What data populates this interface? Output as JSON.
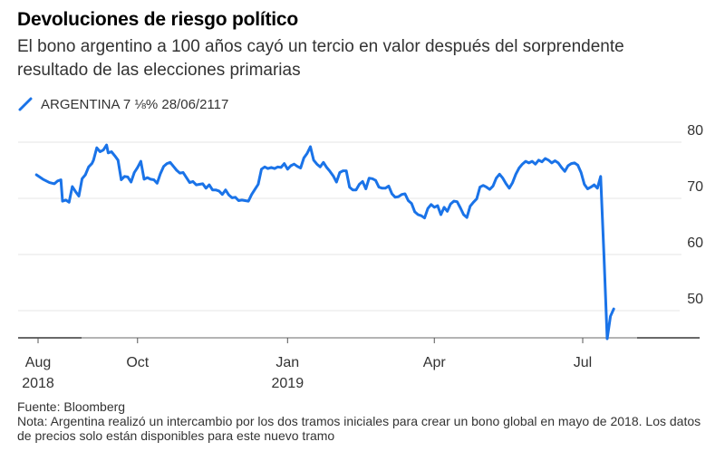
{
  "header": {
    "title": "Devoluciones de riesgo político",
    "subtitle": "El bono argentino a 100 años cayó un tercio en valor después del sorprendente resultado de las elecciones primarias"
  },
  "legend": {
    "label": "ARGENTINA 7 ⅛% 28/06/2117",
    "color": "#1a73e8"
  },
  "footer": {
    "source": "Fuente: Bloomberg",
    "note": "Nota: Argentina realizó un intercambio por los dos tramos iniciales para crear un bono global en mayo de 2018. Los datos de precios solo están disponibles para este nuevo tramo"
  },
  "chart_data": {
    "type": "line",
    "title": "Devoluciones de riesgo político",
    "xlabel": "",
    "ylabel": "",
    "ylim": [
      45,
      80
    ],
    "yticks": [
      50,
      60,
      70,
      80
    ],
    "grid": true,
    "legend_position": "top-left",
    "xticks": [
      {
        "label": "Aug",
        "sub": "2018",
        "day": 0
      },
      {
        "label": "Oct",
        "sub": "",
        "day": 61
      },
      {
        "label": "Jan",
        "sub": "2019",
        "day": 153
      },
      {
        "label": "Apr",
        "sub": "",
        "day": 243
      },
      {
        "label": "Jul",
        "sub": "",
        "day": 334
      }
    ],
    "series": [
      {
        "name": "ARGENTINA 7 ⅛% 28/06/2117",
        "x_day": [
          -1,
          3,
          7,
          10,
          12,
          14,
          15,
          17,
          19,
          21,
          23,
          25,
          27,
          29,
          31,
          33,
          34,
          36,
          38,
          40,
          42,
          43,
          45,
          47,
          49,
          51,
          53,
          55,
          57,
          59,
          61,
          63,
          65,
          67,
          69,
          71,
          73,
          75,
          77,
          79,
          81,
          83,
          85,
          87,
          89,
          91,
          93,
          95,
          97,
          99,
          101,
          103,
          105,
          107,
          109,
          111,
          113,
          115,
          117,
          119,
          121,
          123,
          125,
          127,
          129,
          131,
          133,
          135,
          137,
          139,
          141,
          143,
          145,
          147,
          149,
          151,
          153,
          155,
          157,
          159,
          161,
          163,
          165,
          167,
          169,
          171,
          173,
          175,
          177,
          179,
          181,
          183,
          185,
          187,
          189,
          191,
          193,
          195,
          197,
          199,
          201,
          203,
          205,
          207,
          209,
          211,
          213,
          215,
          217,
          219,
          221,
          223,
          225,
          227,
          229,
          231,
          233,
          235,
          237,
          239,
          241,
          243,
          245,
          247,
          249,
          251,
          253,
          255,
          257,
          259,
          261,
          263,
          265,
          267,
          269,
          271,
          273,
          275,
          277,
          279,
          281,
          283,
          285,
          287,
          289,
          291,
          293,
          295,
          297,
          299,
          301,
          303,
          305,
          307,
          309,
          311,
          313,
          315,
          317,
          319,
          321,
          323,
          325,
          327,
          329,
          331,
          333,
          335,
          337,
          339,
          341,
          343,
          345,
          347,
          349,
          351,
          353,
          355,
          357,
          359,
          361,
          363,
          365,
          367,
          369,
          371,
          373,
          375,
          377,
          379,
          381
        ],
        "values": [
          74.2,
          73.4,
          72.8,
          72.6,
          73.1,
          73.3,
          69.5,
          69.7,
          69.3,
          72.1,
          71.2,
          70.4,
          73.5,
          74.2,
          75.6,
          76.2,
          76.8,
          79.0,
          78.3,
          78.6,
          79.5,
          78.1,
          78.3,
          77.6,
          76.8,
          73.3,
          73.9,
          73.8,
          72.9,
          74.6,
          75.5,
          76.6,
          73.4,
          73.7,
          73.4,
          73.3,
          72.7,
          74.4,
          75.7,
          76.2,
          76.4,
          75.7,
          75.0,
          74.5,
          74.6,
          73.7,
          72.8,
          73.0,
          72.4,
          72.5,
          72.6,
          71.8,
          72.4,
          71.5,
          71.5,
          71.3,
          70.7,
          71.5,
          70.6,
          70.1,
          70.2,
          69.6,
          69.7,
          69.6,
          69.5,
          70.7,
          71.6,
          72.5,
          75.2,
          75.6,
          75.3,
          75.5,
          75.3,
          75.6,
          75.5,
          76.2,
          75.2,
          75.8,
          76.1,
          75.7,
          75.4,
          77.2,
          78.0,
          79.2,
          76.8,
          76.1,
          75.6,
          76.4,
          75.5,
          74.8,
          74.0,
          72.9,
          74.6,
          74.9,
          74.9,
          72.0,
          71.5,
          71.5,
          72.5,
          73.0,
          71.7,
          73.6,
          73.5,
          73.2,
          72.0,
          71.8,
          71.8,
          72.2,
          70.8,
          70.2,
          70.3,
          70.7,
          70.8,
          69.6,
          69.1,
          67.6,
          67.1,
          66.9,
          66.5,
          68.2,
          68.9,
          68.4,
          68.7,
          67.1,
          68.4,
          67.7,
          69.0,
          69.5,
          69.4,
          68.3,
          67.1,
          66.6,
          68.6,
          69.3,
          69.9,
          72.0,
          72.3,
          72.0,
          71.6,
          72.2,
          73.6,
          74.3,
          73.6,
          72.6,
          71.8,
          72.8,
          74.3,
          75.4,
          76.1,
          76.6,
          76.3,
          76.6,
          76.1,
          76.8,
          76.5,
          77.1,
          76.8,
          76.3,
          76.7,
          76.3,
          75.5,
          74.8,
          75.8,
          76.2,
          76.3,
          75.9,
          74.6,
          72.5,
          71.7,
          72.0,
          72.4,
          71.8,
          73.9,
          60.0,
          45.0,
          49.0,
          50.3
        ]
      }
    ]
  }
}
